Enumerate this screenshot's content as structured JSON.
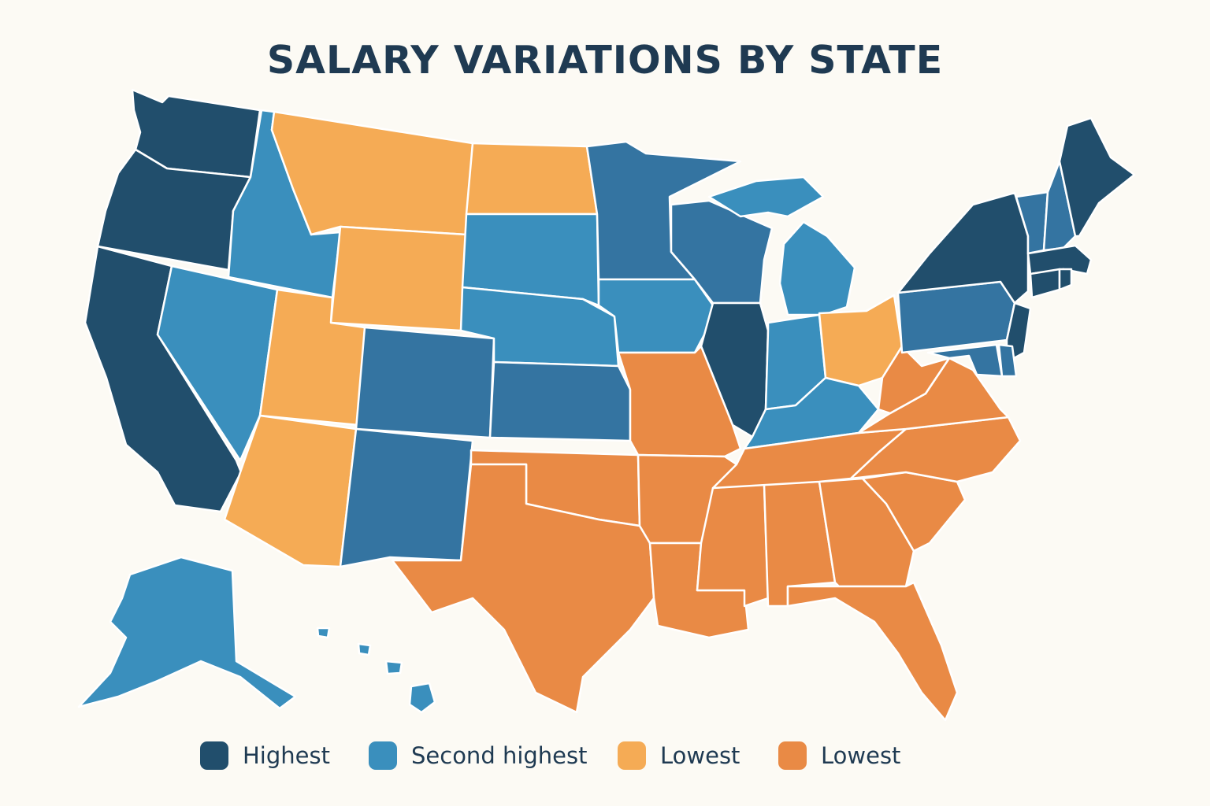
{
  "title": "SALARY VARIATIONS BY STATE",
  "colors": {
    "background": "#fcfaf4",
    "title": "#1f3a52",
    "highest": "#214e6c",
    "second_highest": "#3a8fbd",
    "second_highest_alt": "#3474a1",
    "lowest_light": "#f5ab55",
    "lowest_dark": "#e98a45",
    "border": "#ffffff"
  },
  "legend": [
    {
      "label": "Highest",
      "color": "#214e6c"
    },
    {
      "label": "Second highest",
      "color": "#3a8fbd"
    },
    {
      "label": "Lowest",
      "color": "#f5ab55"
    },
    {
      "label": "Lowest",
      "color": "#e98a45"
    }
  ],
  "states": {
    "WA": "Highest",
    "OR": "Highest",
    "CA": "Highest",
    "IL": "Highest",
    "NY": "Highest",
    "NJ": "Highest",
    "MA": "Highest",
    "CT": "Highest",
    "RI": "Highest",
    "ME": "Highest",
    "ID": "Second highest",
    "NV": "Second highest",
    "CO": "Second highest",
    "NM": "Second highest",
    "SD": "Second highest",
    "NE": "Second highest",
    "KS": "Second highest",
    "MN": "Second highest",
    "IA": "Second highest",
    "WI": "Second highest",
    "MI": "Second highest",
    "IN": "Second highest",
    "KY": "Second highest",
    "PA": "Second highest",
    "VT": "Second highest",
    "NH": "Second highest",
    "MD": "Second highest",
    "DE": "Second highest",
    "AK": "Second highest",
    "HI": "Second highest",
    "MT": "Lowest",
    "WY": "Lowest",
    "ND": "Lowest",
    "UT": "Lowest",
    "AZ": "Lowest",
    "OH": "Lowest",
    "TX": "Lowest (dark)",
    "OK": "Lowest (dark)",
    "MO": "Lowest (dark)",
    "AR": "Lowest (dark)",
    "LA": "Lowest (dark)",
    "MS": "Lowest (dark)",
    "AL": "Lowest (dark)",
    "GA": "Lowest (dark)",
    "FL": "Lowest (dark)",
    "SC": "Lowest (dark)",
    "NC": "Lowest (dark)",
    "TN": "Lowest (dark)",
    "VA": "Lowest (dark)",
    "WV": "Lowest (dark)"
  }
}
